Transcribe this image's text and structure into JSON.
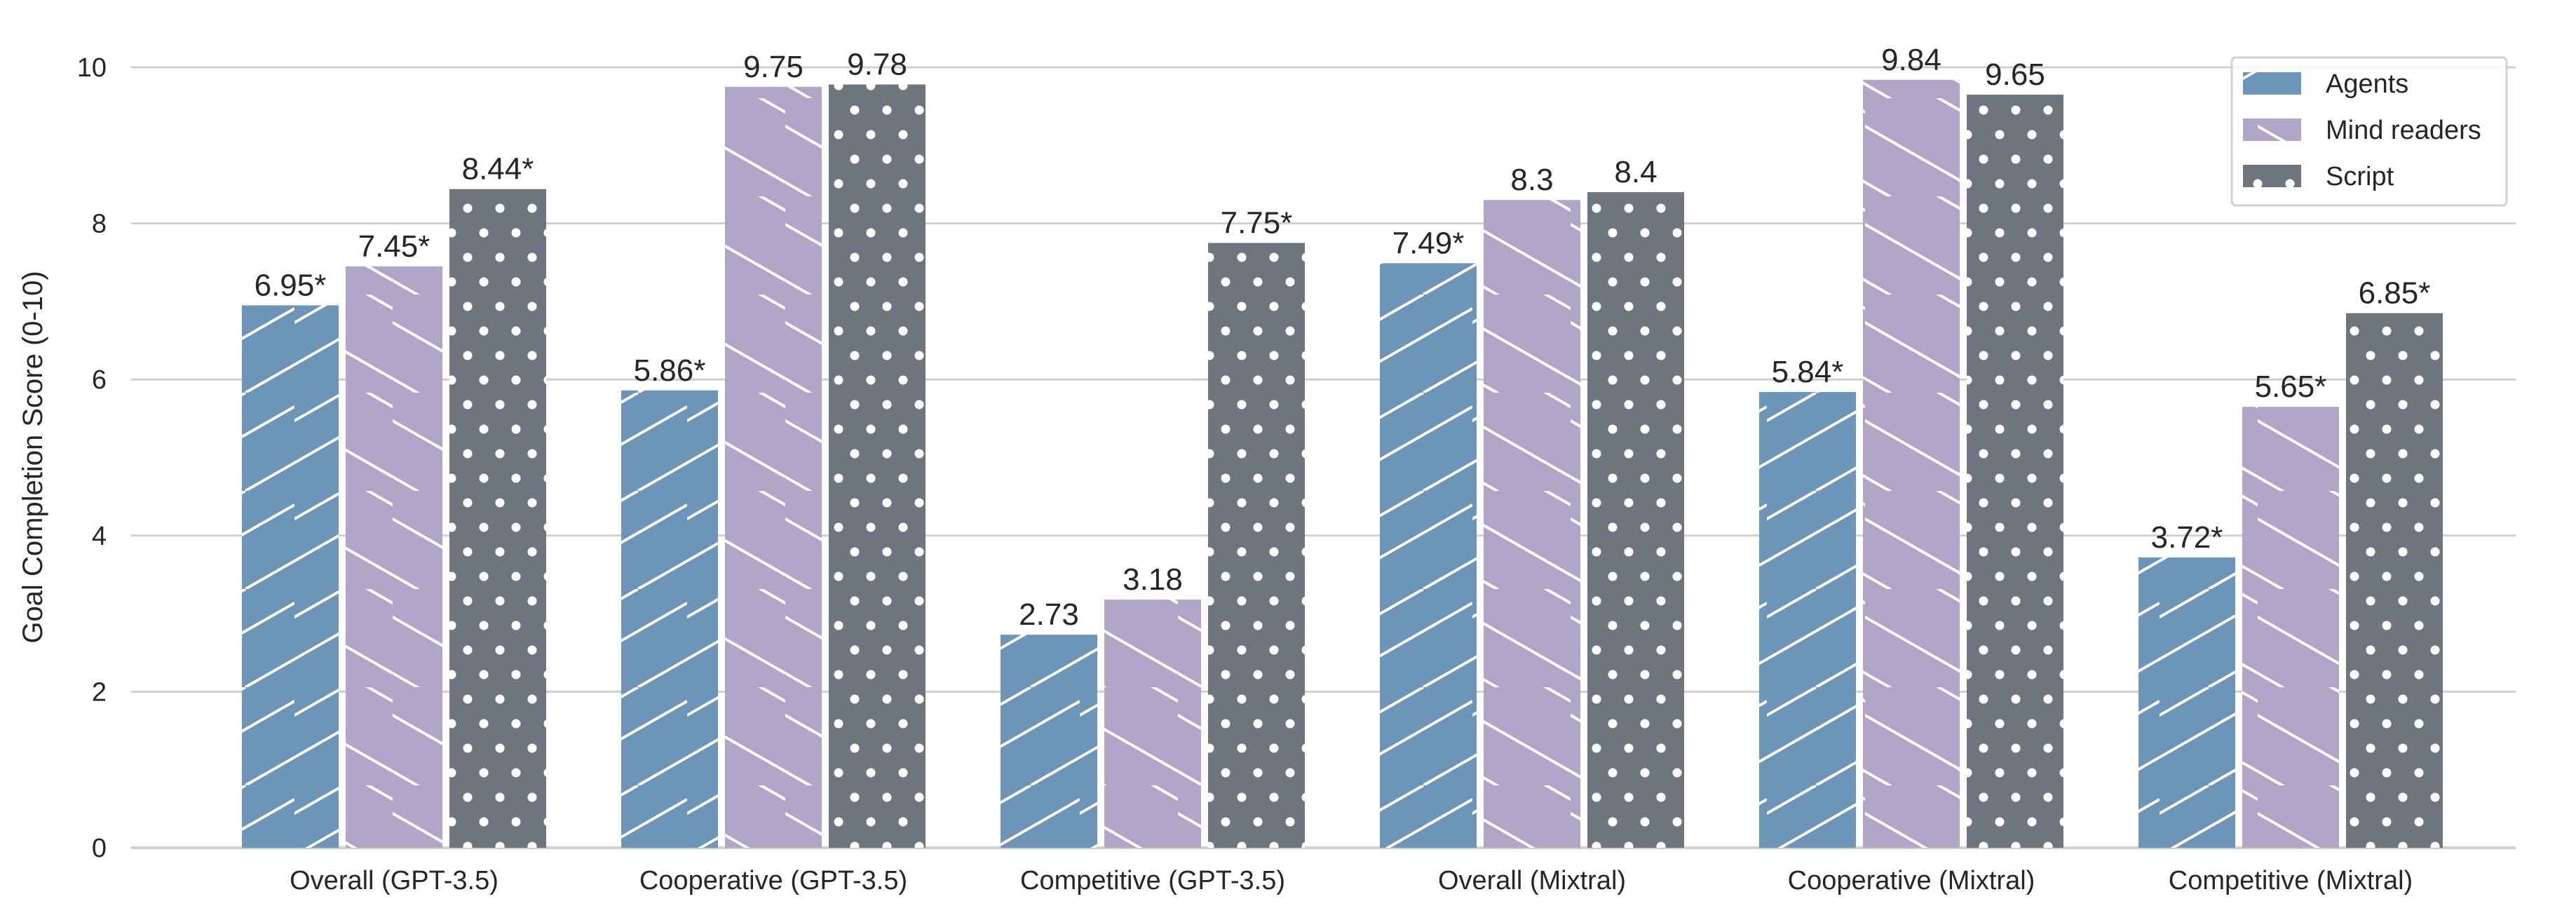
{
  "chart_data": {
    "type": "bar",
    "title": "",
    "xlabel": "",
    "ylabel": "Goal Completion Score (0-10)",
    "ylim": [
      0,
      10
    ],
    "yticks": [
      0,
      2,
      4,
      6,
      8,
      10
    ],
    "grid": true,
    "legend_position": "top-right",
    "categories": [
      "Overall (GPT-3.5)",
      "Cooperative (GPT-3.5)",
      "Competitive (GPT-3.5)",
      "Overall (Mixtral)",
      "Cooperative (Mixtral)",
      "Competitive (Mixtral)"
    ],
    "series": [
      {
        "name": "Agents",
        "color": "#6d95b8",
        "hatch": "forward-diagonal",
        "values": [
          6.95,
          5.86,
          2.73,
          7.49,
          5.84,
          3.72
        ],
        "labels": [
          "6.95*",
          "5.86*",
          "2.73",
          "7.49*",
          "5.84*",
          "3.72*"
        ]
      },
      {
        "name": "Mind readers",
        "color": "#b2a6c8",
        "hatch": "back-diagonal",
        "values": [
          7.45,
          9.75,
          3.18,
          8.3,
          9.84,
          5.65
        ],
        "labels": [
          "7.45*",
          "9.75",
          "3.18",
          "8.3",
          "9.84",
          "5.65*"
        ]
      },
      {
        "name": "Script",
        "color": "#6f757f",
        "hatch": "dots",
        "values": [
          8.44,
          9.78,
          7.75,
          8.4,
          9.65,
          6.85
        ],
        "labels": [
          "8.44*",
          "9.78",
          "7.75*",
          "8.4",
          "9.65",
          "6.85*"
        ]
      }
    ]
  }
}
